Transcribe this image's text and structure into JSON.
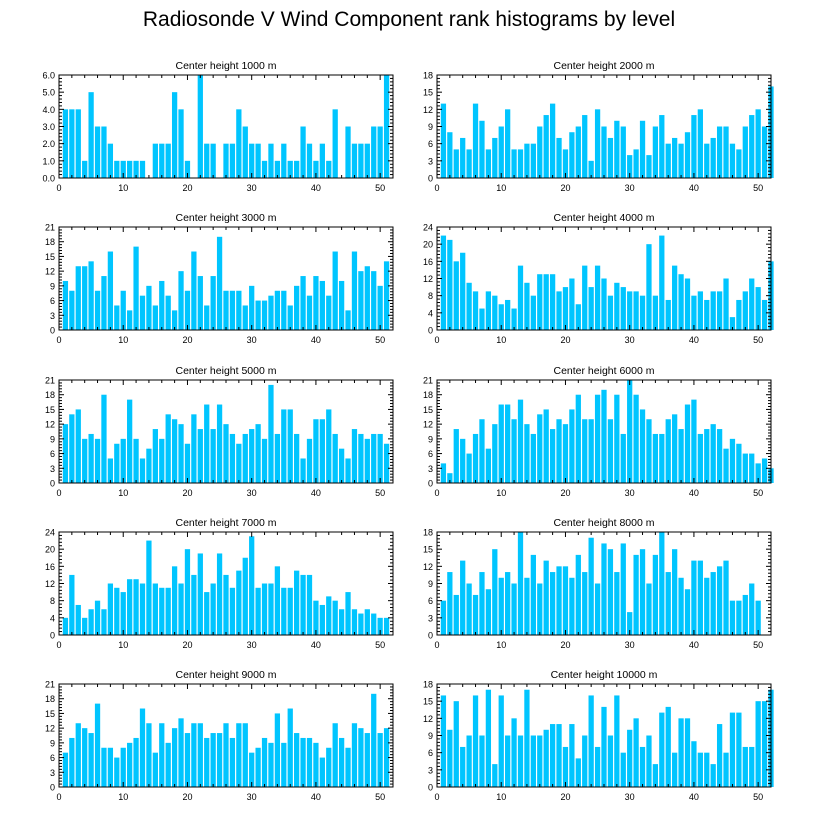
{
  "title": "Radiosonde V Wind Component rank histograms by level",
  "colors": {
    "bar": "#00C5FF",
    "axis": "#000000"
  },
  "chart_data": [
    {
      "type": "bar",
      "title": "Center height 1000 m",
      "ylim": [
        0,
        6
      ],
      "yticks": [
        0,
        1,
        2,
        3,
        4,
        5,
        6
      ],
      "ytick_labels": [
        "0.0",
        "1.0",
        "2.0",
        "3.0",
        "4.0",
        "5.0",
        "6.0"
      ],
      "xlim": [
        0,
        52
      ],
      "xticks": [
        0,
        10,
        20,
        30,
        40,
        50
      ],
      "values": [
        4,
        4,
        4,
        1,
        5,
        3,
        3,
        2,
        1,
        1,
        1,
        1,
        1,
        0,
        2,
        2,
        2,
        5,
        4,
        1,
        0,
        6,
        2,
        2,
        0,
        2,
        2,
        4,
        3,
        2,
        2,
        1,
        2,
        1,
        2,
        1,
        1,
        3,
        2,
        1,
        2,
        1,
        4,
        0,
        3,
        2,
        2,
        2,
        3,
        3,
        6
      ]
    },
    {
      "type": "bar",
      "title": "Center height 2000 m",
      "ylim": [
        0,
        18
      ],
      "yticks": [
        0,
        3,
        6,
        9,
        12,
        15,
        18
      ],
      "ytick_labels": [
        "0",
        "3",
        "6",
        "9",
        "12",
        "15",
        "18"
      ],
      "xlim": [
        0,
        52
      ],
      "xticks": [
        0,
        10,
        20,
        30,
        40,
        50
      ],
      "values": [
        13,
        8,
        5,
        7,
        5,
        13,
        10,
        5,
        7,
        9,
        12,
        5,
        5,
        6,
        6,
        9,
        11,
        13,
        7,
        5,
        8,
        9,
        11,
        3,
        12,
        9,
        7,
        10,
        9,
        4,
        5,
        10,
        4,
        9,
        11,
        6,
        7,
        6,
        8,
        11,
        12,
        6,
        7,
        9,
        9,
        6,
        5,
        9,
        11,
        12,
        9,
        16
      ]
    },
    {
      "type": "bar",
      "title": "Center height 3000 m",
      "ylim": [
        0,
        21
      ],
      "yticks": [
        0,
        3,
        6,
        9,
        12,
        15,
        18,
        21
      ],
      "ytick_labels": [
        "0",
        "3",
        "6",
        "9",
        "12",
        "15",
        "18",
        "21"
      ],
      "xlim": [
        0,
        52
      ],
      "xticks": [
        0,
        10,
        20,
        30,
        40,
        50
      ],
      "values": [
        10,
        8,
        13,
        13,
        14,
        8,
        11,
        16,
        5,
        8,
        4,
        17,
        7,
        9,
        5,
        10,
        7,
        4,
        12,
        8,
        16,
        11,
        5,
        11,
        19,
        8,
        8,
        8,
        5,
        9,
        6,
        6,
        7,
        8,
        8,
        5,
        9,
        11,
        7,
        11,
        10,
        7,
        16,
        10,
        4,
        16,
        12,
        13,
        12,
        9,
        14
      ]
    },
    {
      "type": "bar",
      "title": "Center height 4000 m",
      "ylim": [
        0,
        24
      ],
      "yticks": [
        0,
        4,
        8,
        12,
        16,
        20,
        24
      ],
      "ytick_labels": [
        "0",
        "4",
        "8",
        "12",
        "16",
        "20",
        "24"
      ],
      "xlim": [
        0,
        52
      ],
      "xticks": [
        0,
        10,
        20,
        30,
        40,
        50
      ],
      "values": [
        22,
        21,
        16,
        18,
        11,
        9,
        5,
        9,
        8,
        6,
        7,
        5,
        15,
        11,
        8,
        13,
        13,
        13,
        9,
        10,
        12,
        6,
        15,
        10,
        15,
        12,
        8,
        11,
        10,
        9,
        9,
        8,
        20,
        8,
        22,
        7,
        15,
        13,
        12,
        8,
        9,
        7,
        9,
        9,
        12,
        3,
        7,
        9,
        12,
        10,
        7,
        16
      ]
    },
    {
      "type": "bar",
      "title": "Center height 5000 m",
      "ylim": [
        0,
        21
      ],
      "yticks": [
        0,
        3,
        6,
        9,
        12,
        15,
        18,
        21
      ],
      "ytick_labels": [
        "0",
        "3",
        "6",
        "9",
        "12",
        "15",
        "18",
        "21"
      ],
      "xlim": [
        0,
        52
      ],
      "xticks": [
        0,
        10,
        20,
        30,
        40,
        50
      ],
      "values": [
        12,
        14,
        15,
        9,
        10,
        9,
        18,
        5,
        8,
        9,
        17,
        9,
        5,
        7,
        11,
        9,
        14,
        13,
        12,
        8,
        14,
        11,
        16,
        11,
        16,
        12,
        10,
        8,
        10,
        11,
        12,
        9,
        20,
        10,
        15,
        15,
        10,
        5,
        9,
        13,
        13,
        15,
        10,
        7,
        5,
        11,
        10,
        9,
        10,
        10,
        8
      ]
    },
    {
      "type": "bar",
      "title": "Center height 6000 m",
      "ylim": [
        0,
        21
      ],
      "yticks": [
        0,
        3,
        6,
        9,
        12,
        15,
        18,
        21
      ],
      "ytick_labels": [
        "0",
        "3",
        "6",
        "9",
        "12",
        "15",
        "18",
        "21"
      ],
      "xlim": [
        0,
        52
      ],
      "xticks": [
        0,
        10,
        20,
        30,
        40,
        50
      ],
      "values": [
        4,
        2,
        11,
        9,
        6,
        10,
        13,
        7,
        12,
        16,
        16,
        13,
        17,
        12,
        10,
        14,
        15,
        11,
        13,
        12,
        15,
        18,
        13,
        13,
        18,
        19,
        13,
        18,
        10,
        21,
        18,
        15,
        13,
        10,
        10,
        13,
        14,
        11,
        16,
        17,
        10,
        11,
        12,
        11,
        7,
        9,
        8,
        6,
        6,
        4,
        5,
        3
      ]
    },
    {
      "type": "bar",
      "title": "Center height 7000 m",
      "ylim": [
        0,
        24
      ],
      "yticks": [
        0,
        4,
        8,
        12,
        16,
        20,
        24
      ],
      "ytick_labels": [
        "0",
        "4",
        "8",
        "12",
        "16",
        "20",
        "24"
      ],
      "xlim": [
        0,
        52
      ],
      "xticks": [
        0,
        10,
        20,
        30,
        40,
        50
      ],
      "values": [
        4,
        14,
        7,
        4,
        6,
        8,
        6,
        12,
        11,
        10,
        13,
        13,
        12,
        22,
        12,
        11,
        11,
        16,
        12,
        20,
        14,
        19,
        10,
        12,
        19,
        14,
        11,
        15,
        18,
        23,
        11,
        12,
        12,
        16,
        11,
        11,
        15,
        14,
        14,
        8,
        7,
        9,
        8,
        6,
        10,
        6,
        5,
        6,
        5,
        4,
        4
      ]
    },
    {
      "type": "bar",
      "title": "Center height 8000 m",
      "ylim": [
        0,
        18
      ],
      "yticks": [
        0,
        3,
        6,
        9,
        12,
        15,
        18
      ],
      "ytick_labels": [
        "0",
        "3",
        "6",
        "9",
        "12",
        "15",
        "18"
      ],
      "xlim": [
        0,
        52
      ],
      "xticks": [
        0,
        10,
        20,
        30,
        40,
        50
      ],
      "values": [
        6,
        11,
        7,
        13,
        9,
        7,
        11,
        8,
        15,
        10,
        11,
        9,
        18,
        10,
        14,
        9,
        13,
        11,
        12,
        12,
        10,
        14,
        11,
        17,
        9,
        16,
        15,
        11,
        16,
        4,
        14,
        15,
        9,
        14,
        18,
        11,
        15,
        10,
        8,
        13,
        13,
        10,
        11,
        12,
        13,
        6,
        6,
        7,
        9,
        6
      ]
    },
    {
      "type": "bar",
      "title": "Center height 9000 m",
      "ylim": [
        0,
        21
      ],
      "yticks": [
        0,
        3,
        6,
        9,
        12,
        15,
        18,
        21
      ],
      "ytick_labels": [
        "0",
        "3",
        "6",
        "9",
        "12",
        "15",
        "18",
        "21"
      ],
      "xlim": [
        0,
        52
      ],
      "xticks": [
        0,
        10,
        20,
        30,
        40,
        50
      ],
      "values": [
        7,
        10,
        13,
        12,
        11,
        17,
        8,
        8,
        6,
        8,
        9,
        10,
        16,
        13,
        7,
        13,
        9,
        12,
        14,
        11,
        13,
        13,
        10,
        11,
        11,
        13,
        10,
        13,
        13,
        7,
        8,
        10,
        9,
        15,
        9,
        16,
        11,
        10,
        10,
        9,
        6,
        8,
        13,
        10,
        8,
        13,
        12,
        11,
        19,
        11,
        12
      ]
    },
    {
      "type": "bar",
      "title": "Center height 10000 m",
      "ylim": [
        0,
        18
      ],
      "yticks": [
        0,
        3,
        6,
        9,
        12,
        15,
        18
      ],
      "ytick_labels": [
        "0",
        "3",
        "6",
        "9",
        "12",
        "15",
        "18"
      ],
      "xlim": [
        0,
        52
      ],
      "xticks": [
        0,
        10,
        20,
        30,
        40,
        50
      ],
      "values": [
        16,
        10,
        15,
        7,
        9,
        16,
        9,
        17,
        4,
        16,
        9,
        12,
        9,
        17,
        9,
        9,
        10,
        11,
        11,
        7,
        11,
        5,
        9,
        16,
        7,
        14,
        9,
        16,
        6,
        10,
        12,
        7,
        9,
        4,
        13,
        14,
        6,
        12,
        12,
        8,
        6,
        6,
        4,
        11,
        6,
        13,
        13,
        7,
        7,
        15,
        15,
        17
      ]
    }
  ]
}
